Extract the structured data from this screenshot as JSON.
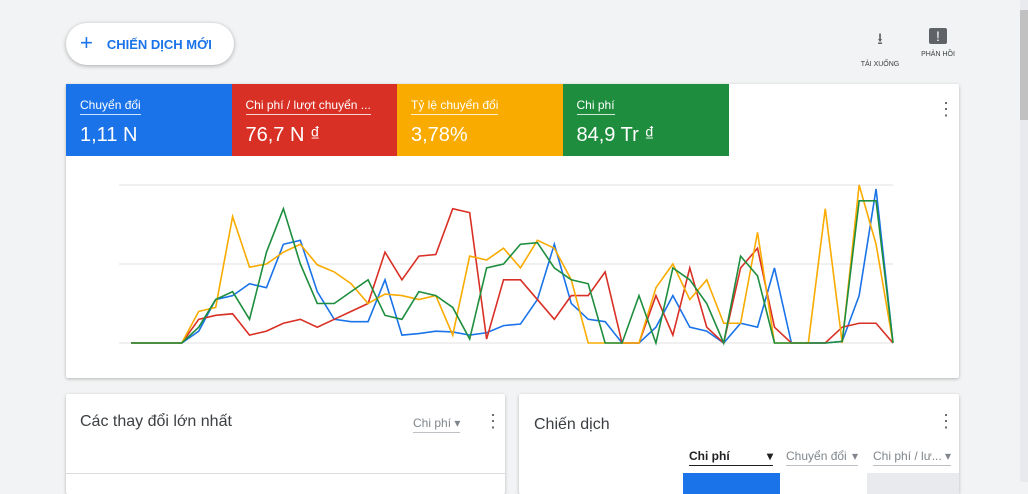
{
  "header": {
    "new_campaign": "CHIẾN DỊCH MỚI",
    "tools": [
      "TẢI XUỐNG",
      "PHẢN HỒI"
    ]
  },
  "metrics": [
    {
      "label": "Chuyển đổi",
      "value": "1,11 N",
      "color": "#1a73e8"
    },
    {
      "label": "Chi phí / lượt chuyển ...",
      "value": "76,7 N ₫",
      "color": "#d93025"
    },
    {
      "label": "Tỷ lệ chuyển đổi",
      "value": "3,78%",
      "color": "#f9ab00"
    },
    {
      "label": "Chi phí",
      "value": "84,9 Tr ₫",
      "color": "#1e8e3e"
    }
  ],
  "chart_data": {
    "type": "line",
    "ylim": [
      0,
      2
    ],
    "yticks": [
      0,
      1,
      2
    ],
    "grid": true,
    "categories": [
      null,
      null,
      null,
      null,
      null,
      null,
      null,
      null,
      null,
      null,
      null,
      null,
      null,
      null,
      null,
      null,
      null,
      null,
      null,
      null,
      null,
      null,
      null,
      null,
      null,
      null,
      null,
      null,
      null,
      null,
      null,
      null,
      null,
      null,
      null,
      null,
      null,
      null,
      null,
      null,
      null,
      null,
      null,
      null,
      null,
      null
    ],
    "series": [
      {
        "name": "Chuyển đổi",
        "color": "#1a73e8",
        "values": [
          0,
          0,
          0,
          0,
          0.15,
          0.55,
          0.6,
          0.75,
          0.7,
          1.25,
          1.3,
          0.65,
          0.3,
          0.27,
          0.27,
          0.8,
          0.1,
          0.12,
          0.15,
          0.14,
          0.1,
          0.13,
          0.22,
          0.24,
          0.55,
          1.25,
          0.5,
          0.3,
          0.27,
          0,
          0,
          0.2,
          0.6,
          0.2,
          0.15,
          0,
          0.25,
          0.2,
          0.95,
          0,
          0,
          0,
          0.02,
          0.6,
          1.95,
          0
        ]
      },
      {
        "name": "Chi phí / lượt chuyển ...",
        "color": "#d93025",
        "values": [
          0,
          0,
          0,
          0,
          0.3,
          0.35,
          0.37,
          0.1,
          0.15,
          0.25,
          0.3,
          0.2,
          0.3,
          0.4,
          0.5,
          1.15,
          0.8,
          1.1,
          1.12,
          1.7,
          1.65,
          0.05,
          0.8,
          0.8,
          0.55,
          0.3,
          0.6,
          0.6,
          0.9,
          0,
          0,
          0.6,
          0.1,
          0.95,
          0.2,
          0,
          0.95,
          1.2,
          0.2,
          0,
          0,
          0,
          0.2,
          0.25,
          0.25,
          0
        ]
      },
      {
        "name": "Tỷ lệ chuyển đổi",
        "color": "#f9ab00",
        "values": [
          0,
          0,
          0,
          0,
          0.4,
          0.45,
          1.6,
          0.96,
          1.0,
          1.15,
          1.25,
          0.99,
          0.9,
          0.75,
          0.5,
          0.62,
          0.6,
          0.55,
          0.6,
          0.1,
          1.1,
          1.05,
          1.2,
          0.95,
          1.3,
          1.2,
          0.8,
          0,
          0,
          0,
          0,
          0.7,
          1.0,
          0.55,
          0.8,
          0.25,
          0.25,
          1.4,
          0,
          0,
          0,
          1.7,
          0,
          2.0,
          1.25,
          0
        ]
      },
      {
        "name": "Chi phí",
        "color": "#1e8e3e",
        "values": [
          0,
          0,
          0,
          0,
          0.2,
          0.55,
          0.65,
          0.3,
          1.15,
          1.7,
          1.0,
          0.5,
          0.5,
          0.65,
          0.8,
          0.35,
          0.3,
          0.65,
          0.6,
          0.45,
          0.05,
          0.95,
          1.0,
          1.25,
          1.27,
          0.95,
          0.8,
          0.75,
          0,
          0,
          0.6,
          0,
          0.95,
          0.8,
          0.5,
          0,
          1.1,
          0.85,
          0,
          0,
          0,
          0,
          0.02,
          1.8,
          1.8,
          0
        ]
      }
    ]
  },
  "changes_card": {
    "title": "Các thay đổi lớn nhất",
    "metric": "Chi phí"
  },
  "campaign_card": {
    "title": "Chiến dịch",
    "columns": [
      "Chi phí",
      "Chuyển đổi",
      "Chi phí / lư..."
    ]
  }
}
